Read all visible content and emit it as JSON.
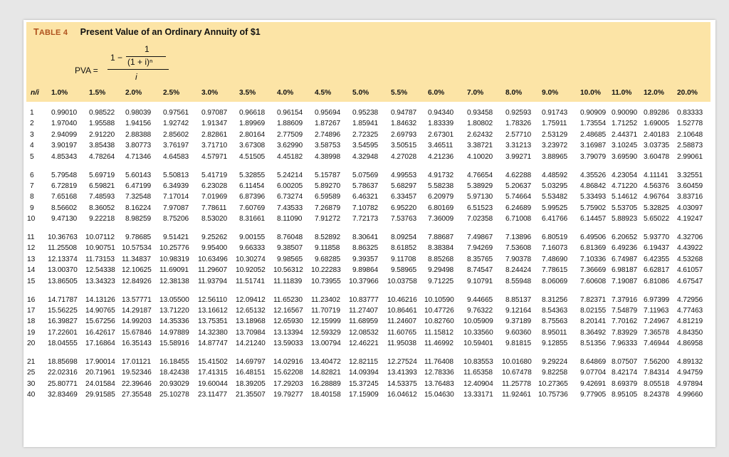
{
  "table": {
    "label_prefix": "T",
    "label_rest": "ABLE 4",
    "title": "Present Value of an Ordinary Annuity of $1",
    "formula": {
      "lhs": "PVA =",
      "one_minus": "1 −",
      "numerator_inner": "1",
      "denominator_inner": "(1 + i)ⁿ",
      "denominator": "i"
    },
    "corner_label": "n/i",
    "rates": [
      "1.0%",
      "1.5%",
      "2.0%",
      "2.5%",
      "3.0%",
      "3.5%",
      "4.0%",
      "4.5%",
      "5.0%",
      "5.5%",
      "6.0%",
      "7.0%",
      "8.0%",
      "9.0%",
      "10.0%",
      "11.0%",
      "12.0%",
      "20.0%"
    ],
    "rows": [
      {
        "n": "1",
        "v": [
          "0.99010",
          "0.98522",
          "0.98039",
          "0.97561",
          "0.97087",
          "0.96618",
          "0.96154",
          "0.95694",
          "0.95238",
          "0.94787",
          "0.94340",
          "0.93458",
          "0.92593",
          "0.91743",
          "0.90909",
          "0.90090",
          "0.89286",
          "0.83333"
        ]
      },
      {
        "n": "2",
        "v": [
          "1.97040",
          "1.95588",
          "1.94156",
          "1.92742",
          "1.91347",
          "1.89969",
          "1.88609",
          "1.87267",
          "1.85941",
          "1.84632",
          "1.83339",
          "1.80802",
          "1.78326",
          "1.75911",
          "1.73554",
          "1.71252",
          "1.69005",
          "1.52778"
        ]
      },
      {
        "n": "3",
        "v": [
          "2.94099",
          "2.91220",
          "2.88388",
          "2.85602",
          "2.82861",
          "2.80164",
          "2.77509",
          "2.74896",
          "2.72325",
          "2.69793",
          "2.67301",
          "2.62432",
          "2.57710",
          "2.53129",
          "2.48685",
          "2.44371",
          "2.40183",
          "2.10648"
        ]
      },
      {
        "n": "4",
        "v": [
          "3.90197",
          "3.85438",
          "3.80773",
          "3.76197",
          "3.71710",
          "3.67308",
          "3.62990",
          "3.58753",
          "3.54595",
          "3.50515",
          "3.46511",
          "3.38721",
          "3.31213",
          "3.23972",
          "3.16987",
          "3.10245",
          "3.03735",
          "2.58873"
        ]
      },
      {
        "n": "5",
        "v": [
          "4.85343",
          "4.78264",
          "4.71346",
          "4.64583",
          "4.57971",
          "4.51505",
          "4.45182",
          "4.38998",
          "4.32948",
          "4.27028",
          "4.21236",
          "4.10020",
          "3.99271",
          "3.88965",
          "3.79079",
          "3.69590",
          "3.60478",
          "2.99061"
        ]
      },
      {
        "n": "6",
        "v": [
          "5.79548",
          "5.69719",
          "5.60143",
          "5.50813",
          "5.41719",
          "5.32855",
          "5.24214",
          "5.15787",
          "5.07569",
          "4.99553",
          "4.91732",
          "4.76654",
          "4.62288",
          "4.48592",
          "4.35526",
          "4.23054",
          "4.11141",
          "3.32551"
        ]
      },
      {
        "n": "7",
        "v": [
          "6.72819",
          "6.59821",
          "6.47199",
          "6.34939",
          "6.23028",
          "6.11454",
          "6.00205",
          "5.89270",
          "5.78637",
          "5.68297",
          "5.58238",
          "5.38929",
          "5.20637",
          "5.03295",
          "4.86842",
          "4.71220",
          "4.56376",
          "3.60459"
        ]
      },
      {
        "n": "8",
        "v": [
          "7.65168",
          "7.48593",
          "7.32548",
          "7.17014",
          "7.01969",
          "6.87396",
          "6.73274",
          "6.59589",
          "6.46321",
          "6.33457",
          "6.20979",
          "5.97130",
          "5.74664",
          "5.53482",
          "5.33493",
          "5.14612",
          "4.96764",
          "3.83716"
        ]
      },
      {
        "n": "9",
        "v": [
          "8.56602",
          "8.36052",
          "8.16224",
          "7.97087",
          "7.78611",
          "7.60769",
          "7.43533",
          "7.26879",
          "7.10782",
          "6.95220",
          "6.80169",
          "6.51523",
          "6.24689",
          "5.99525",
          "5.75902",
          "5.53705",
          "5.32825",
          "4.03097"
        ]
      },
      {
        "n": "10",
        "v": [
          "9.47130",
          "9.22218",
          "8.98259",
          "8.75206",
          "8.53020",
          "8.31661",
          "8.11090",
          "7.91272",
          "7.72173",
          "7.53763",
          "7.36009",
          "7.02358",
          "6.71008",
          "6.41766",
          "6.14457",
          "5.88923",
          "5.65022",
          "4.19247"
        ]
      },
      {
        "n": "11",
        "v": [
          "10.36763",
          "10.07112",
          "9.78685",
          "9.51421",
          "9.25262",
          "9.00155",
          "8.76048",
          "8.52892",
          "8.30641",
          "8.09254",
          "7.88687",
          "7.49867",
          "7.13896",
          "6.80519",
          "6.49506",
          "6.20652",
          "5.93770",
          "4.32706"
        ]
      },
      {
        "n": "12",
        "v": [
          "11.25508",
          "10.90751",
          "10.57534",
          "10.25776",
          "9.95400",
          "9.66333",
          "9.38507",
          "9.11858",
          "8.86325",
          "8.61852",
          "8.38384",
          "7.94269",
          "7.53608",
          "7.16073",
          "6.81369",
          "6.49236",
          "6.19437",
          "4.43922"
        ]
      },
      {
        "n": "13",
        "v": [
          "12.13374",
          "11.73153",
          "11.34837",
          "10.98319",
          "10.63496",
          "10.30274",
          "9.98565",
          "9.68285",
          "9.39357",
          "9.11708",
          "8.85268",
          "8.35765",
          "7.90378",
          "7.48690",
          "7.10336",
          "6.74987",
          "6.42355",
          "4.53268"
        ]
      },
      {
        "n": "14",
        "v": [
          "13.00370",
          "12.54338",
          "12.10625",
          "11.69091",
          "11.29607",
          "10.92052",
          "10.56312",
          "10.22283",
          "9.89864",
          "9.58965",
          "9.29498",
          "8.74547",
          "8.24424",
          "7.78615",
          "7.36669",
          "6.98187",
          "6.62817",
          "4.61057"
        ]
      },
      {
        "n": "15",
        "v": [
          "13.86505",
          "13.34323",
          "12.84926",
          "12.38138",
          "11.93794",
          "11.51741",
          "11.11839",
          "10.73955",
          "10.37966",
          "10.03758",
          "9.71225",
          "9.10791",
          "8.55948",
          "8.06069",
          "7.60608",
          "7.19087",
          "6.81086",
          "4.67547"
        ]
      },
      {
        "n": "16",
        "v": [
          "14.71787",
          "14.13126",
          "13.57771",
          "13.05500",
          "12.56110",
          "12.09412",
          "11.65230",
          "11.23402",
          "10.83777",
          "10.46216",
          "10.10590",
          "9.44665",
          "8.85137",
          "8.31256",
          "7.82371",
          "7.37916",
          "6.97399",
          "4.72956"
        ]
      },
      {
        "n": "17",
        "v": [
          "15.56225",
          "14.90765",
          "14.29187",
          "13.71220",
          "13.16612",
          "12.65132",
          "12.16567",
          "11.70719",
          "11.27407",
          "10.86461",
          "10.47726",
          "9.76322",
          "9.12164",
          "8.54363",
          "8.02155",
          "7.54879",
          "7.11963",
          "4.77463"
        ]
      },
      {
        "n": "18",
        "v": [
          "16.39827",
          "15.67256",
          "14.99203",
          "14.35336",
          "13.75351",
          "13.18968",
          "12.65930",
          "12.15999",
          "11.68959",
          "11.24607",
          "10.82760",
          "10.05909",
          "9.37189",
          "8.75563",
          "8.20141",
          "7.70162",
          "7.24967",
          "4.81219"
        ]
      },
      {
        "n": "19",
        "v": [
          "17.22601",
          "16.42617",
          "15.67846",
          "14.97889",
          "14.32380",
          "13.70984",
          "13.13394",
          "12.59329",
          "12.08532",
          "11.60765",
          "11.15812",
          "10.33560",
          "9.60360",
          "8.95011",
          "8.36492",
          "7.83929",
          "7.36578",
          "4.84350"
        ]
      },
      {
        "n": "20",
        "v": [
          "18.04555",
          "17.16864",
          "16.35143",
          "15.58916",
          "14.87747",
          "14.21240",
          "13.59033",
          "13.00794",
          "12.46221",
          "11.95038",
          "11.46992",
          "10.59401",
          "9.81815",
          "9.12855",
          "8.51356",
          "7.96333",
          "7.46944",
          "4.86958"
        ]
      },
      {
        "n": "21",
        "v": [
          "18.85698",
          "17.90014",
          "17.01121",
          "16.18455",
          "15.41502",
          "14.69797",
          "14.02916",
          "13.40472",
          "12.82115",
          "12.27524",
          "11.76408",
          "10.83553",
          "10.01680",
          "9.29224",
          "8.64869",
          "8.07507",
          "7.56200",
          "4.89132"
        ]
      },
      {
        "n": "25",
        "v": [
          "22.02316",
          "20.71961",
          "19.52346",
          "18.42438",
          "17.41315",
          "16.48151",
          "15.62208",
          "14.82821",
          "14.09394",
          "13.41393",
          "12.78336",
          "11.65358",
          "10.67478",
          "9.82258",
          "9.07704",
          "8.42174",
          "7.84314",
          "4.94759"
        ]
      },
      {
        "n": "30",
        "v": [
          "25.80771",
          "24.01584",
          "22.39646",
          "20.93029",
          "19.60044",
          "18.39205",
          "17.29203",
          "16.28889",
          "15.37245",
          "14.53375",
          "13.76483",
          "12.40904",
          "11.25778",
          "10.27365",
          "9.42691",
          "8.69379",
          "8.05518",
          "4.97894"
        ]
      },
      {
        "n": "40",
        "v": [
          "32.83469",
          "29.91585",
          "27.35548",
          "25.10278",
          "23.11477",
          "21.35507",
          "19.79277",
          "18.40158",
          "17.15909",
          "16.04612",
          "15.04630",
          "13.33171",
          "11.92461",
          "10.75736",
          "9.77905",
          "8.95105",
          "8.24378",
          "4.99660"
        ]
      }
    ]
  }
}
